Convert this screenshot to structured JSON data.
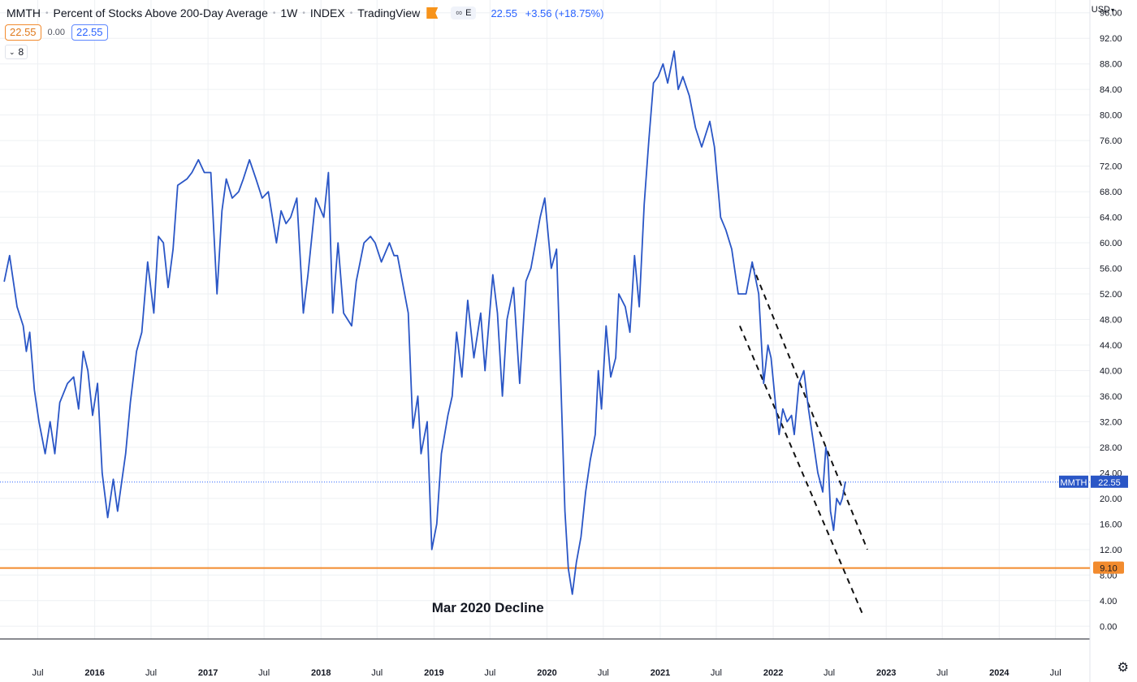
{
  "header": {
    "symbol": "MMTH",
    "description": "Percent of Stocks Above 200-Day Average",
    "interval": "1W",
    "exchange": "INDEX",
    "source": "TradingView",
    "pill_label": "E",
    "last": "22.55",
    "change": "+3.56 (+18.75%)",
    "currency": "USD"
  },
  "row2": {
    "left_box": "22.55",
    "zero": "0.00",
    "right_box": "22.55"
  },
  "ma_toggle": "8",
  "colors": {
    "line": "#2a56c6",
    "support": "#f28b2e",
    "trend": "#111111",
    "grid": "#eef0f3"
  },
  "chart_data": {
    "type": "line",
    "title": "",
    "xlabel": "",
    "ylabel": "",
    "ylim": [
      -2,
      98
    ],
    "y_ticks": [
      "0.00",
      "4.00",
      "8.00",
      "12.00",
      "16.00",
      "20.00",
      "24.00",
      "28.00",
      "32.00",
      "36.00",
      "40.00",
      "44.00",
      "48.00",
      "52.00",
      "56.00",
      "60.00",
      "64.00",
      "68.00",
      "72.00",
      "76.00",
      "80.00",
      "84.00",
      "88.00",
      "92.00",
      "96.00"
    ],
    "x_ticks": [
      {
        "date": "2015-07-01",
        "label": "Jul",
        "bold": false
      },
      {
        "date": "2016-01-01",
        "label": "2016",
        "bold": true
      },
      {
        "date": "2016-07-01",
        "label": "Jul",
        "bold": false
      },
      {
        "date": "2017-01-01",
        "label": "2017",
        "bold": true
      },
      {
        "date": "2017-07-01",
        "label": "Jul",
        "bold": false
      },
      {
        "date": "2018-01-01",
        "label": "2018",
        "bold": true
      },
      {
        "date": "2018-07-01",
        "label": "Jul",
        "bold": false
      },
      {
        "date": "2019-01-01",
        "label": "2019",
        "bold": true
      },
      {
        "date": "2019-07-01",
        "label": "Jul",
        "bold": false
      },
      {
        "date": "2020-01-01",
        "label": "2020",
        "bold": true
      },
      {
        "date": "2020-07-01",
        "label": "Jul",
        "bold": false
      },
      {
        "date": "2021-01-01",
        "label": "2021",
        "bold": true
      },
      {
        "date": "2021-07-01",
        "label": "Jul",
        "bold": false
      },
      {
        "date": "2022-01-01",
        "label": "2022",
        "bold": true
      },
      {
        "date": "2022-07-01",
        "label": "Jul",
        "bold": false
      },
      {
        "date": "2023-01-01",
        "label": "2023",
        "bold": true
      },
      {
        "date": "2023-07-01",
        "label": "Jul",
        "bold": false
      },
      {
        "date": "2024-01-01",
        "label": "2024",
        "bold": true
      },
      {
        "date": "2024-07-01",
        "label": "Jul",
        "bold": false
      }
    ],
    "series": [
      {
        "points": [
          [
            "2015-03-15",
            54
          ],
          [
            "2015-04-01",
            58
          ],
          [
            "2015-04-25",
            50
          ],
          [
            "2015-05-15",
            47
          ],
          [
            "2015-05-25",
            43
          ],
          [
            "2015-06-05",
            46
          ],
          [
            "2015-06-20",
            37
          ],
          [
            "2015-07-05",
            32
          ],
          [
            "2015-07-25",
            27
          ],
          [
            "2015-08-10",
            32
          ],
          [
            "2015-08-25",
            27
          ],
          [
            "2015-09-10",
            35
          ],
          [
            "2015-10-05",
            38
          ],
          [
            "2015-10-25",
            39
          ],
          [
            "2015-11-10",
            34
          ],
          [
            "2015-11-25",
            43
          ],
          [
            "2015-12-10",
            40
          ],
          [
            "2015-12-25",
            33
          ],
          [
            "2016-01-10",
            38
          ],
          [
            "2016-01-25",
            24
          ],
          [
            "2016-02-12",
            17
          ],
          [
            "2016-03-01",
            23
          ],
          [
            "2016-03-15",
            18
          ],
          [
            "2016-04-10",
            27
          ],
          [
            "2016-04-25",
            35
          ],
          [
            "2016-05-15",
            43
          ],
          [
            "2016-06-01",
            46
          ],
          [
            "2016-06-20",
            57
          ],
          [
            "2016-07-10",
            49
          ],
          [
            "2016-07-25",
            61
          ],
          [
            "2016-08-10",
            60
          ],
          [
            "2016-08-25",
            53
          ],
          [
            "2016-09-10",
            59
          ],
          [
            "2016-09-25",
            69
          ],
          [
            "2016-10-25",
            70
          ],
          [
            "2016-11-10",
            71
          ],
          [
            "2016-12-01",
            73
          ],
          [
            "2016-12-20",
            71
          ],
          [
            "2017-01-10",
            71
          ],
          [
            "2017-01-30",
            52
          ],
          [
            "2017-02-15",
            65
          ],
          [
            "2017-03-01",
            70
          ],
          [
            "2017-03-20",
            67
          ],
          [
            "2017-04-10",
            68
          ],
          [
            "2017-04-25",
            70
          ],
          [
            "2017-05-15",
            73
          ],
          [
            "2017-06-05",
            70
          ],
          [
            "2017-06-25",
            67
          ],
          [
            "2017-07-15",
            68
          ],
          [
            "2017-08-10",
            60
          ],
          [
            "2017-08-25",
            65
          ],
          [
            "2017-09-10",
            63
          ],
          [
            "2017-09-25",
            64
          ],
          [
            "2017-10-15",
            67
          ],
          [
            "2017-11-05",
            49
          ],
          [
            "2017-11-20",
            55
          ],
          [
            "2017-12-15",
            67
          ],
          [
            "2018-01-10",
            64
          ],
          [
            "2018-01-25",
            71
          ],
          [
            "2018-02-08",
            49
          ],
          [
            "2018-02-25",
            60
          ],
          [
            "2018-03-15",
            49
          ],
          [
            "2018-04-10",
            47
          ],
          [
            "2018-04-25",
            54
          ],
          [
            "2018-05-20",
            60
          ],
          [
            "2018-06-10",
            61
          ],
          [
            "2018-06-25",
            60
          ],
          [
            "2018-07-15",
            57
          ],
          [
            "2018-08-10",
            60
          ],
          [
            "2018-08-25",
            58
          ],
          [
            "2018-09-05",
            58
          ],
          [
            "2018-10-10",
            49
          ],
          [
            "2018-10-25",
            31
          ],
          [
            "2018-11-10",
            36
          ],
          [
            "2018-11-20",
            27
          ],
          [
            "2018-12-10",
            32
          ],
          [
            "2018-12-25",
            12
          ],
          [
            "2019-01-10",
            16
          ],
          [
            "2019-01-25",
            27
          ],
          [
            "2019-02-15",
            33
          ],
          [
            "2019-03-01",
            36
          ],
          [
            "2019-03-15",
            46
          ],
          [
            "2019-04-01",
            39
          ],
          [
            "2019-04-20",
            51
          ],
          [
            "2019-05-10",
            42
          ],
          [
            "2019-06-01",
            49
          ],
          [
            "2019-06-15",
            40
          ],
          [
            "2019-07-10",
            55
          ],
          [
            "2019-07-25",
            49
          ],
          [
            "2019-08-10",
            36
          ],
          [
            "2019-08-25",
            48
          ],
          [
            "2019-09-15",
            53
          ],
          [
            "2019-10-05",
            38
          ],
          [
            "2019-10-25",
            54
          ],
          [
            "2019-11-10",
            56
          ],
          [
            "2019-11-25",
            60
          ],
          [
            "2019-12-10",
            64
          ],
          [
            "2019-12-25",
            67
          ],
          [
            "2020-01-15",
            56
          ],
          [
            "2020-02-01",
            59
          ],
          [
            "2020-02-15",
            38
          ],
          [
            "2020-02-28",
            18
          ],
          [
            "2020-03-10",
            9
          ],
          [
            "2020-03-23",
            5
          ],
          [
            "2020-04-05",
            10
          ],
          [
            "2020-04-20",
            14
          ],
          [
            "2020-05-05",
            21
          ],
          [
            "2020-05-20",
            26
          ],
          [
            "2020-06-05",
            30
          ],
          [
            "2020-06-15",
            40
          ],
          [
            "2020-06-25",
            34
          ],
          [
            "2020-07-10",
            47
          ],
          [
            "2020-07-25",
            39
          ],
          [
            "2020-08-10",
            42
          ],
          [
            "2020-08-20",
            52
          ],
          [
            "2020-09-10",
            50
          ],
          [
            "2020-09-25",
            46
          ],
          [
            "2020-10-10",
            58
          ],
          [
            "2020-10-25",
            50
          ],
          [
            "2020-11-10",
            66
          ],
          [
            "2020-11-25",
            76
          ],
          [
            "2020-12-10",
            85
          ],
          [
            "2020-12-25",
            86
          ],
          [
            "2021-01-10",
            88
          ],
          [
            "2021-01-25",
            85
          ],
          [
            "2021-02-15",
            90
          ],
          [
            "2021-02-28",
            84
          ],
          [
            "2021-03-15",
            86
          ],
          [
            "2021-04-05",
            83
          ],
          [
            "2021-04-25",
            78
          ],
          [
            "2021-05-15",
            75
          ],
          [
            "2021-06-10",
            79
          ],
          [
            "2021-06-25",
            75
          ],
          [
            "2021-07-15",
            64
          ],
          [
            "2021-08-01",
            62
          ],
          [
            "2021-08-20",
            59
          ],
          [
            "2021-09-10",
            52
          ],
          [
            "2021-10-05",
            52
          ],
          [
            "2021-10-25",
            57
          ],
          [
            "2021-11-15",
            52
          ],
          [
            "2021-12-01",
            38
          ],
          [
            "2021-12-15",
            44
          ],
          [
            "2021-12-25",
            42
          ],
          [
            "2022-01-10",
            34
          ],
          [
            "2022-01-20",
            30
          ],
          [
            "2022-02-01",
            34
          ],
          [
            "2022-02-15",
            32
          ],
          [
            "2022-03-01",
            33
          ],
          [
            "2022-03-10",
            30
          ],
          [
            "2022-03-25",
            38
          ],
          [
            "2022-04-10",
            40
          ],
          [
            "2022-04-25",
            34
          ],
          [
            "2022-05-10",
            29
          ],
          [
            "2022-05-25",
            24
          ],
          [
            "2022-06-10",
            21
          ],
          [
            "2022-06-20",
            28
          ],
          [
            "2022-06-27",
            26
          ],
          [
            "2022-07-05",
            18
          ],
          [
            "2022-07-15",
            15
          ],
          [
            "2022-07-25",
            20
          ],
          [
            "2022-08-05",
            19
          ],
          [
            "2022-08-12",
            20
          ],
          [
            "2022-08-22",
            22.55
          ]
        ]
      }
    ],
    "support_level": 9.1,
    "support_label": "9.10",
    "last_value": 22.55,
    "last_label": "MMTH",
    "last_value_label": "22.55",
    "trendlines": [
      {
        "from": [
          "2021-10-25",
          56.5
        ],
        "to": [
          "2022-11-01",
          12
        ]
      },
      {
        "from": [
          "2021-09-15",
          47
        ],
        "to": [
          "2022-10-20",
          1.5
        ]
      }
    ],
    "annotation": {
      "text": "Mar 2020 Decline",
      "date": "2018-12-25",
      "value": 2.2
    },
    "grid": true
  }
}
